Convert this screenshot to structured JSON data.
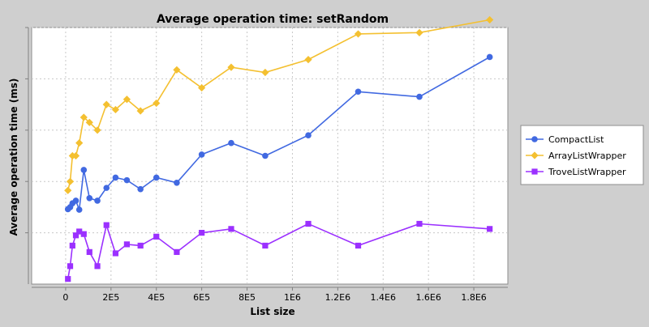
{
  "chart_data": {
    "type": "line",
    "title": "Average operation time: setRandom",
    "xlabel": "List size",
    "ylabel": "Average operation time (ms)",
    "xlim": [
      -150000,
      1950000
    ],
    "ylim": [
      0,
      10
    ],
    "grid": true,
    "legend_position": "right",
    "x_ticks": [
      0,
      200000,
      400000,
      600000,
      800000,
      1000000,
      1200000,
      1400000,
      1600000,
      1800000
    ],
    "x_tick_labels": [
      "0",
      "2E5",
      "4E5",
      "6E5",
      "8E5",
      "1E6",
      "1.2E6",
      "1.4E6",
      "1.6E6",
      "1.8E6"
    ],
    "y_ticks": [
      2,
      4,
      6,
      8,
      10
    ],
    "series": [
      {
        "name": "CompactList",
        "color": "#4169e1",
        "marker": "circle",
        "points": [
          [
            10000,
            2.92
          ],
          [
            20000,
            3.0
          ],
          [
            30000,
            3.15
          ],
          [
            45000,
            3.25
          ],
          [
            60000,
            2.9
          ],
          [
            80000,
            4.45
          ],
          [
            105000,
            3.35
          ],
          [
            140000,
            3.25
          ],
          [
            180000,
            3.75
          ],
          [
            220000,
            4.15
          ],
          [
            270000,
            4.05
          ],
          [
            330000,
            3.7
          ],
          [
            400000,
            4.15
          ],
          [
            490000,
            3.95
          ],
          [
            600000,
            5.05
          ],
          [
            730000,
            5.5
          ],
          [
            880000,
            5.0
          ],
          [
            1070000,
            5.8
          ],
          [
            1290000,
            7.5
          ],
          [
            1560000,
            7.3
          ],
          [
            1870000,
            8.85
          ]
        ]
      },
      {
        "name": "ArrayListWrapper",
        "color": "#f4c030",
        "marker": "diamond",
        "points": [
          [
            10000,
            3.65
          ],
          [
            20000,
            4.0
          ],
          [
            30000,
            5.0
          ],
          [
            45000,
            5.0
          ],
          [
            60000,
            5.5
          ],
          [
            80000,
            6.5
          ],
          [
            105000,
            6.3
          ],
          [
            140000,
            6.0
          ],
          [
            180000,
            7.0
          ],
          [
            220000,
            6.8
          ],
          [
            270000,
            7.2
          ],
          [
            330000,
            6.75
          ],
          [
            400000,
            7.05
          ],
          [
            490000,
            8.35
          ],
          [
            600000,
            7.65
          ],
          [
            730000,
            8.45
          ],
          [
            880000,
            8.25
          ],
          [
            1070000,
            8.75
          ],
          [
            1290000,
            9.75
          ],
          [
            1560000,
            9.8
          ],
          [
            1870000,
            10.3
          ]
        ]
      },
      {
        "name": "TroveListWrapper",
        "color": "#9b30ff",
        "marker": "square",
        "points": [
          [
            10000,
            0.2
          ],
          [
            20000,
            0.7
          ],
          [
            30000,
            1.5
          ],
          [
            45000,
            1.9
          ],
          [
            60000,
            2.05
          ],
          [
            80000,
            1.95
          ],
          [
            105000,
            1.25
          ],
          [
            140000,
            0.7
          ],
          [
            180000,
            2.3
          ],
          [
            220000,
            1.2
          ],
          [
            270000,
            1.55
          ],
          [
            330000,
            1.5
          ],
          [
            400000,
            1.85
          ],
          [
            490000,
            1.25
          ],
          [
            600000,
            2.0
          ],
          [
            730000,
            2.15
          ],
          [
            880000,
            1.5
          ],
          [
            1070000,
            2.35
          ],
          [
            1290000,
            1.5
          ],
          [
            1560000,
            2.35
          ],
          [
            1870000,
            2.15
          ]
        ]
      }
    ]
  }
}
